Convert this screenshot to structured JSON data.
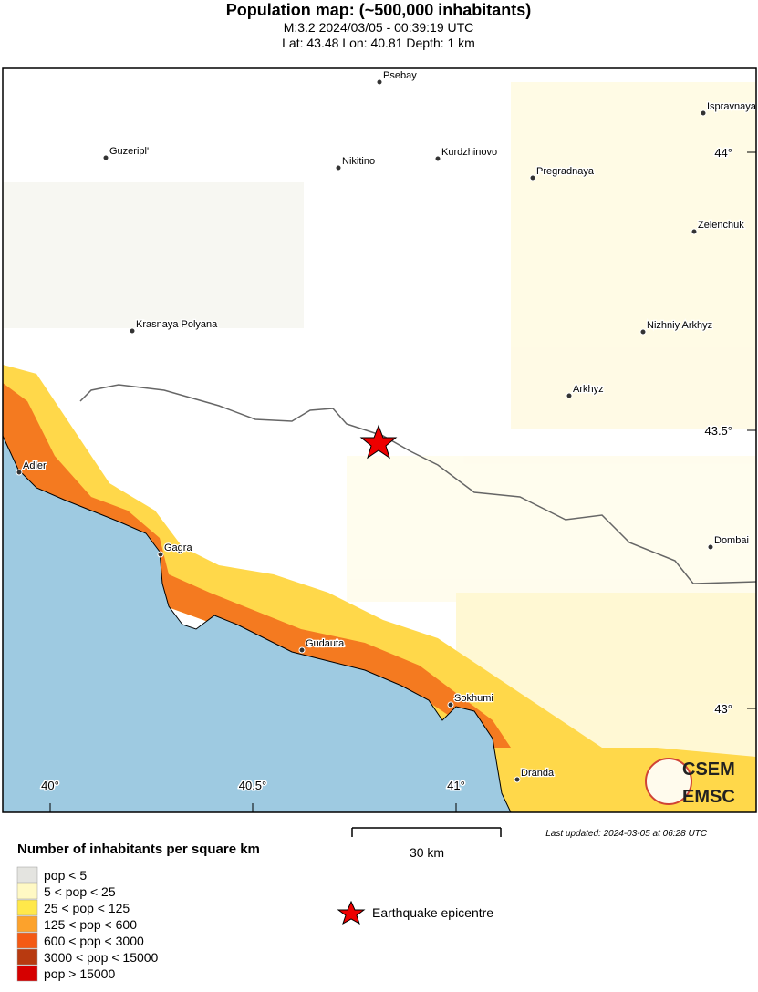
{
  "header": {
    "title": "Population map: (~500,000 inhabitants)",
    "line1": "M:3.2 2024/03/05 - 00:39:19 UTC",
    "line2": "Lat: 43.48 Lon: 40.81 Depth: 1 km"
  },
  "map": {
    "cities": [
      "Psebay",
      "Ispravnaya",
      "Guzeripl'",
      "Nikitino",
      "Kurdzhinovo",
      "Pregradnaya",
      "Zelenchuk",
      "Krasnaya Polyana",
      "Nizhniy Arkhyz",
      "Arkhyz",
      "Adler",
      "Dombai",
      "Gagra",
      "Gudauta",
      "Sokhumi",
      "Dranda"
    ],
    "lon_labels": [
      "40°",
      "40.5°",
      "41°"
    ],
    "lat_labels": [
      "44°",
      "43.5°",
      "43°"
    ]
  },
  "legend": {
    "title": "Number of inhabitants per square km",
    "items": [
      {
        "label": "pop < 5",
        "color": "#e4e4e0"
      },
      {
        "label": "5 < pop < 25",
        "color": "#fff9c4"
      },
      {
        "label": "25 < pop < 125",
        "color": "#ffe84a"
      },
      {
        "label": "125 < pop < 600",
        "color": "#fca22c"
      },
      {
        "label": "600 < pop < 3000",
        "color": "#f45a14"
      },
      {
        "label": "3000 < pop < 15000",
        "color": "#b83a10"
      },
      {
        "label": "pop > 15000",
        "color": "#d60000"
      }
    ],
    "epicentre": "Earthquake epicentre"
  },
  "scale": "30 km",
  "last_updated": "Last updated: 2024-03-05 at 06:28 UTC",
  "logo": [
    "CSEM",
    "EMSC"
  ]
}
